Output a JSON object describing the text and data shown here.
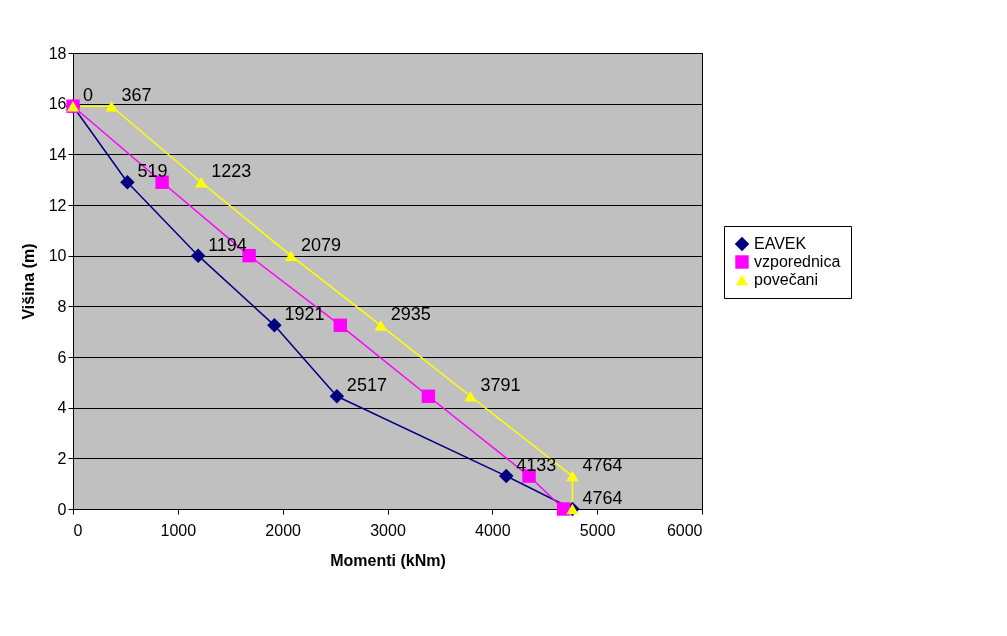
{
  "chart_data": {
    "type": "line",
    "xlabel": "Momenti (kNm)",
    "ylabel": "Višina (m)",
    "xlim": [
      0,
      6000
    ],
    "xticks": [
      0,
      1000,
      2000,
      3000,
      4000,
      5000,
      6000
    ],
    "ylim": [
      0,
      18
    ],
    "yticks": [
      0,
      2,
      4,
      6,
      8,
      10,
      12,
      14,
      16,
      18
    ],
    "grid": "y",
    "legend": "right",
    "series": [
      {
        "name": "EAVEK",
        "color": "#000080",
        "marker": "diamond",
        "x": [
          0,
          519,
          1194,
          1921,
          2517,
          4133,
          4764
        ],
        "values": [
          15.9,
          12.9,
          10.0,
          7.25,
          4.45,
          1.3,
          0
        ]
      },
      {
        "name": "vzporednica",
        "color": "#ff00ff",
        "marker": "square",
        "x": [
          0,
          850,
          1680,
          2550,
          3390,
          4350,
          4680
        ],
        "values": [
          15.9,
          12.9,
          10.0,
          7.25,
          4.45,
          1.3,
          0
        ]
      },
      {
        "name": "povečani",
        "color": "#ffff00",
        "marker": "triangle",
        "x": [
          0,
          367,
          1223,
          2079,
          2935,
          3791,
          4764,
          4764
        ],
        "values": [
          15.9,
          15.9,
          12.9,
          10.0,
          7.25,
          4.45,
          1.3,
          0
        ]
      }
    ],
    "annotations": [
      {
        "text": "0",
        "x": 0,
        "y": 15.9
      },
      {
        "text": "519",
        "x": 519,
        "y": 12.9
      },
      {
        "text": "1194",
        "x": 1194,
        "y": 10.0
      },
      {
        "text": "1921",
        "x": 1921,
        "y": 7.25
      },
      {
        "text": "2517",
        "x": 2517,
        "y": 4.45
      },
      {
        "text": "4133",
        "x": 4133,
        "y": 1.3
      },
      {
        "text": "4764",
        "x": 4764,
        "y": 0
      },
      {
        "text": "367",
        "x": 367,
        "y": 15.9
      },
      {
        "text": "1223",
        "x": 1223,
        "y": 12.9
      },
      {
        "text": "2079",
        "x": 2079,
        "y": 10.0
      },
      {
        "text": "2935",
        "x": 2935,
        "y": 7.25
      },
      {
        "text": "3791",
        "x": 3791,
        "y": 4.45
      },
      {
        "text": "4764",
        "x": 4764,
        "y": 1.3
      }
    ]
  }
}
